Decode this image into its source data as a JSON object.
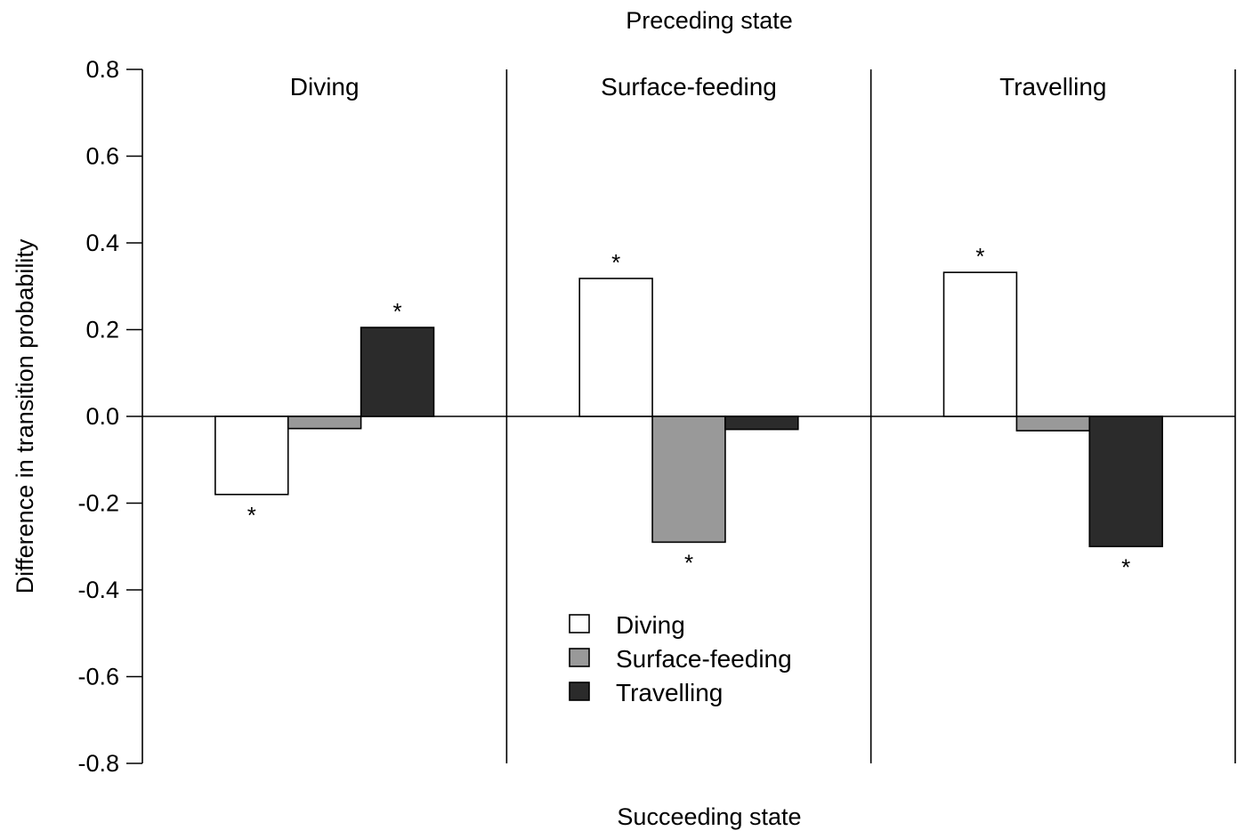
{
  "chart_data": {
    "type": "bar",
    "title": "Preceding state",
    "xlabel": "Succeeding state",
    "ylabel": "Difference in transition probability",
    "ylim": [
      -0.8,
      0.8
    ],
    "yticks": [
      "0.8",
      "0.6",
      "0.4",
      "0.2",
      "0.0",
      "-0.2",
      "-0.4",
      "-0.6",
      "-0.8"
    ],
    "grid": false,
    "legend_position": "bottom-center",
    "panels": [
      {
        "label": "Diving",
        "values": [
          -0.18,
          -0.028,
          0.205
        ],
        "significant": [
          true,
          false,
          true
        ]
      },
      {
        "label": "Surface-feeding",
        "values": [
          0.318,
          -0.29,
          -0.03
        ],
        "significant": [
          true,
          true,
          false
        ]
      },
      {
        "label": "Travelling",
        "values": [
          0.332,
          -0.033,
          -0.3
        ],
        "significant": [
          true,
          false,
          true
        ]
      }
    ],
    "series": [
      {
        "name": "Diving",
        "color": "#ffffff"
      },
      {
        "name": "Surface-feeding",
        "color": "#999999"
      },
      {
        "name": "Travelling",
        "color": "#2b2b2b"
      }
    ],
    "significance_marker": "*"
  }
}
